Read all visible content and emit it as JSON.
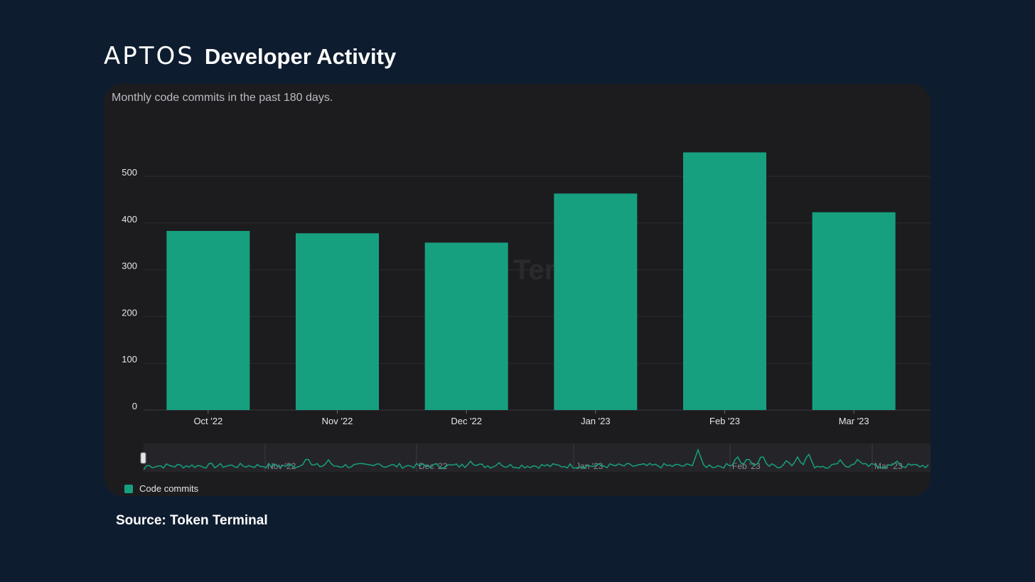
{
  "header": {
    "logo_text": "APTOS",
    "title": "Developer Activity"
  },
  "card": {
    "subtitle": "Monthly code commits in the past 180 days.",
    "watermark": "Token Terminal"
  },
  "colors": {
    "background": "#0e1c2f",
    "card": "#1c1c1f",
    "bar": "#17a07f"
  },
  "chart_data": {
    "type": "bar",
    "title": "Developer Activity",
    "subtitle": "Monthly code commits in the past 180 days.",
    "categories": [
      "Oct '22",
      "Nov '22",
      "Dec '22",
      "Jan '23",
      "Feb '23",
      "Mar '23"
    ],
    "series": [
      {
        "name": "Code commits",
        "values": [
          383,
          378,
          358,
          463,
          551,
          423
        ]
      }
    ],
    "yticks": [
      0,
      100,
      200,
      300,
      400,
      500
    ],
    "ylim": [
      0,
      550
    ],
    "xlabel": "",
    "ylabel": "",
    "grid": true,
    "legend": "bottom-left",
    "navigator": {
      "labels": [
        "Nov '22",
        "Dec '22",
        "Jan '23",
        "Feb '23",
        "Mar '23"
      ]
    }
  },
  "legend": {
    "label": "Code commits"
  },
  "source": "Source: Token Terminal"
}
